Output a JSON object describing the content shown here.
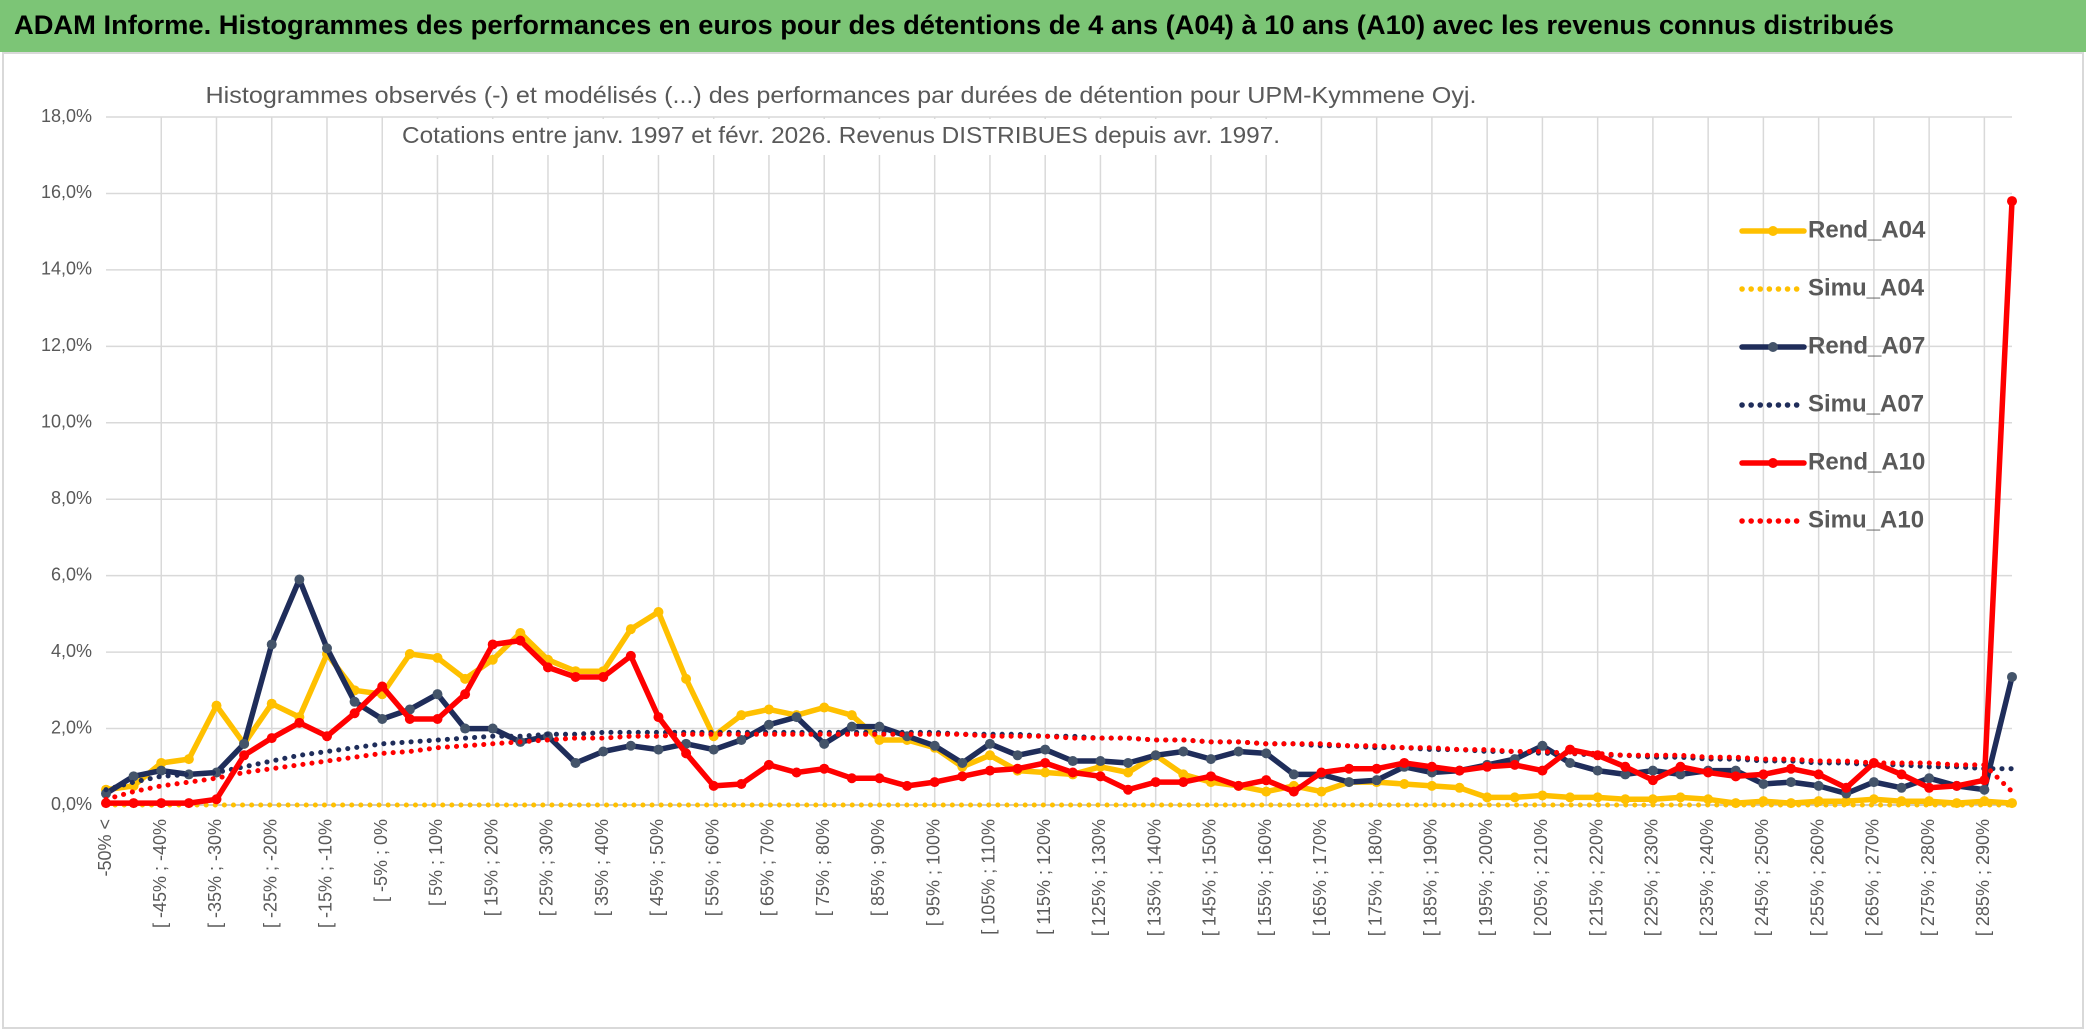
{
  "chart_data": {
    "type": "line",
    "title": "ADAM Informe. Histogrammes des performances en euros pour des détentions de 4 ans (A04) à 10 ans (A10) avec les revenus connus distribués",
    "subtitle": [
      "Histogrammes observés (-) et modélisés (...) des performances par durées de détention pour UPM-Kymmene Oyj.",
      "Cotations entre janv. 1997 et févr. 2026. Revenus DISTRIBUES depuis avr. 1997."
    ],
    "categories": [
      "-50% <",
      null,
      "[ -45% ; -40%",
      null,
      "[ -35% ; -30%",
      null,
      "[ -25% ; -20%",
      null,
      "[ -15% ; -10%",
      null,
      "[ -5% ; 0%",
      null,
      "[ 5% ; 10%",
      null,
      "[ 15% ; 20%",
      null,
      "[ 25% ; 30%",
      null,
      "[ 35% ; 40%",
      null,
      "[ 45% ; 50%",
      null,
      "[ 55% ; 60%",
      null,
      "[ 65% ; 70%",
      null,
      "[ 75% ; 80%",
      null,
      "[ 85% ; 90%",
      null,
      "[ 95% ; 100%",
      null,
      "[ 105% ; 110%",
      null,
      "[ 115% ; 120%",
      null,
      "[ 125% ; 130%",
      null,
      "[ 135% ; 140%",
      null,
      "[ 145% ; 150%",
      null,
      "[ 155% ; 160%",
      null,
      "[ 165% ; 170%",
      null,
      "[ 175% ; 180%",
      null,
      "[ 185% ; 190%",
      null,
      "[ 195% ; 200%",
      null,
      "[ 205% ; 210%",
      null,
      "[ 215% ; 220%",
      null,
      "[ 225% ; 230%",
      null,
      "[ 235% ; 240%",
      null,
      "[ 245% ; 250%",
      null,
      "[ 255% ; 260%",
      null,
      "[ 265% ; 270%",
      null,
      "[ 275% ; 280%",
      null,
      "[ 285% ; 290%",
      null
    ],
    "series": [
      {
        "name": "Rend_A04",
        "color": "#ffc000",
        "marker_color": "#ffc000",
        "style": "solid",
        "values": [
          0.4,
          0.5,
          1.1,
          1.2,
          2.6,
          1.6,
          2.65,
          2.3,
          3.95,
          3.0,
          2.9,
          3.95,
          3.85,
          3.3,
          3.8,
          4.5,
          3.8,
          3.5,
          3.5,
          4.6,
          5.05,
          3.3,
          1.8,
          2.35,
          2.5,
          2.35,
          2.55,
          2.35,
          1.7,
          1.7,
          1.5,
          1.0,
          1.3,
          0.9,
          0.85,
          0.8,
          1.0,
          0.85,
          1.3,
          0.8,
          0.6,
          0.5,
          0.35,
          0.5,
          0.35,
          0.6,
          0.6,
          0.55,
          0.5,
          0.45,
          0.2,
          0.2,
          0.25,
          0.2,
          0.2,
          0.15,
          0.15,
          0.2,
          0.15,
          0.05,
          0.1,
          0.05,
          0.1,
          0.1,
          0.15,
          0.1,
          0.1,
          0.05,
          0.1,
          0.05
        ]
      },
      {
        "name": "Simu_A04",
        "color": "#ffc000",
        "style": "dotted",
        "values": [
          0,
          0,
          0,
          0,
          0,
          0,
          0,
          0,
          0,
          0,
          0,
          0,
          0,
          0,
          0,
          0,
          0,
          0,
          0,
          0,
          0,
          0,
          0,
          0,
          0,
          0,
          0,
          0,
          0,
          0,
          0,
          0,
          0,
          0,
          0,
          0,
          0,
          0,
          0,
          0,
          0,
          0,
          0,
          0,
          0,
          0,
          0,
          0,
          0,
          0,
          0,
          0,
          0,
          0,
          0,
          0,
          0,
          0,
          0,
          0,
          0,
          0,
          0,
          0,
          0,
          0,
          0,
          0,
          0,
          0
        ]
      },
      {
        "name": "Rend_A07",
        "color": "#1f2d5a",
        "marker_color": "#44546a",
        "style": "solid",
        "values": [
          0.3,
          0.75,
          0.9,
          0.8,
          0.85,
          1.6,
          4.2,
          5.9,
          4.1,
          2.7,
          2.25,
          2.5,
          2.9,
          2.0,
          2.0,
          1.65,
          1.8,
          1.1,
          1.4,
          1.55,
          1.45,
          1.6,
          1.45,
          1.7,
          2.1,
          2.3,
          1.6,
          2.05,
          2.05,
          1.8,
          1.55,
          1.1,
          1.6,
          1.3,
          1.45,
          1.15,
          1.15,
          1.1,
          1.3,
          1.4,
          1.2,
          1.4,
          1.35,
          0.8,
          0.8,
          0.6,
          0.65,
          1.0,
          0.85,
          0.9,
          1.05,
          1.2,
          1.55,
          1.1,
          0.9,
          0.8,
          0.9,
          0.8,
          0.9,
          0.9,
          0.55,
          0.6,
          0.5,
          0.3,
          0.6,
          0.45,
          0.7,
          0.5,
          0.4,
          3.35
        ]
      },
      {
        "name": "Simu_A07",
        "color": "#1f2d5a",
        "style": "dotted",
        "values": [
          0.4,
          0.6,
          0.75,
          0.8,
          0.85,
          1.0,
          1.15,
          1.3,
          1.4,
          1.5,
          1.6,
          1.65,
          1.7,
          1.75,
          1.8,
          1.8,
          1.85,
          1.85,
          1.9,
          1.9,
          1.9,
          1.9,
          1.9,
          1.9,
          1.9,
          1.9,
          1.9,
          1.9,
          1.9,
          1.9,
          1.9,
          1.85,
          1.85,
          1.85,
          1.8,
          1.8,
          1.75,
          1.75,
          1.7,
          1.7,
          1.65,
          1.65,
          1.6,
          1.6,
          1.55,
          1.55,
          1.5,
          1.5,
          1.45,
          1.45,
          1.4,
          1.4,
          1.35,
          1.35,
          1.3,
          1.3,
          1.25,
          1.25,
          1.2,
          1.2,
          1.15,
          1.15,
          1.1,
          1.1,
          1.05,
          1.05,
          1.0,
          1.0,
          0.95,
          0.95
        ]
      },
      {
        "name": "Rend_A10",
        "color": "#ff0000",
        "marker_color": "#ff0000",
        "style": "solid",
        "values": [
          0.05,
          0.05,
          0.05,
          0.05,
          0.15,
          1.3,
          1.75,
          2.15,
          1.8,
          2.4,
          3.1,
          2.25,
          2.25,
          2.9,
          4.2,
          4.3,
          3.6,
          3.35,
          3.35,
          3.9,
          2.3,
          1.35,
          0.5,
          0.55,
          1.05,
          0.85,
          0.95,
          0.7,
          0.7,
          0.5,
          0.6,
          0.75,
          0.9,
          0.95,
          1.1,
          0.85,
          0.75,
          0.4,
          0.6,
          0.6,
          0.75,
          0.5,
          0.65,
          0.35,
          0.85,
          0.95,
          0.95,
          1.1,
          1.0,
          0.9,
          1.0,
          1.05,
          0.9,
          1.45,
          1.3,
          1.0,
          0.65,
          1.0,
          0.85,
          0.75,
          0.8,
          0.95,
          0.8,
          0.45,
          1.1,
          0.8,
          0.45,
          0.5,
          0.65,
          15.8
        ]
      },
      {
        "name": "Simu_A10",
        "color": "#ff0000",
        "style": "dotted",
        "values": [
          0.15,
          0.35,
          0.5,
          0.6,
          0.7,
          0.85,
          0.95,
          1.05,
          1.15,
          1.25,
          1.35,
          1.4,
          1.5,
          1.55,
          1.6,
          1.65,
          1.7,
          1.75,
          1.75,
          1.8,
          1.8,
          1.85,
          1.85,
          1.85,
          1.85,
          1.85,
          1.85,
          1.85,
          1.85,
          1.85,
          1.85,
          1.85,
          1.8,
          1.8,
          1.8,
          1.75,
          1.75,
          1.75,
          1.7,
          1.7,
          1.65,
          1.65,
          1.6,
          1.6,
          1.6,
          1.55,
          1.55,
          1.5,
          1.5,
          1.45,
          1.45,
          1.4,
          1.4,
          1.35,
          1.35,
          1.3,
          1.3,
          1.3,
          1.25,
          1.25,
          1.2,
          1.2,
          1.15,
          1.15,
          1.1,
          1.1,
          1.1,
          1.05,
          1.05,
          0.35
        ]
      }
    ],
    "ylim": [
      0,
      18
    ],
    "yticks": [
      {
        "value": 0,
        "label": "0,0%"
      },
      {
        "value": 2,
        "label": "2,0%"
      },
      {
        "value": 4,
        "label": "4,0%"
      },
      {
        "value": 6,
        "label": "6,0%"
      },
      {
        "value": 8,
        "label": "8,0%"
      },
      {
        "value": 10,
        "label": "10,0%"
      },
      {
        "value": 12,
        "label": "12,0%"
      },
      {
        "value": 14,
        "label": "14,0%"
      },
      {
        "value": 16,
        "label": "16,0%"
      },
      {
        "value": 18,
        "label": "18,0%"
      }
    ],
    "grid": true,
    "legend": "right"
  }
}
